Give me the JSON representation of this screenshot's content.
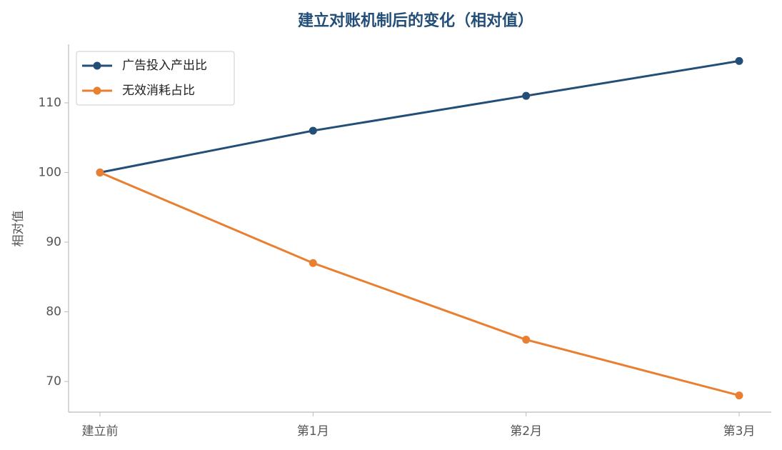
{
  "chart_data": {
    "type": "line",
    "title": "建立对账机制后的变化（相对值）",
    "ylabel": "相对值",
    "categories": [
      "建立前",
      "第1月",
      "第2月",
      "第3月"
    ],
    "series": [
      {
        "name": "广告投入产出比",
        "color": "#234e78",
        "values": [
          100,
          106,
          111,
          116
        ]
      },
      {
        "name": "无效消耗占比",
        "color": "#e97f30",
        "values": [
          100,
          87,
          76,
          68
        ]
      }
    ],
    "ylim": [
      65.6,
      118.4
    ],
    "yticks": [
      70,
      80,
      90,
      100,
      110
    ],
    "grid": false,
    "legend": "upper left"
  }
}
